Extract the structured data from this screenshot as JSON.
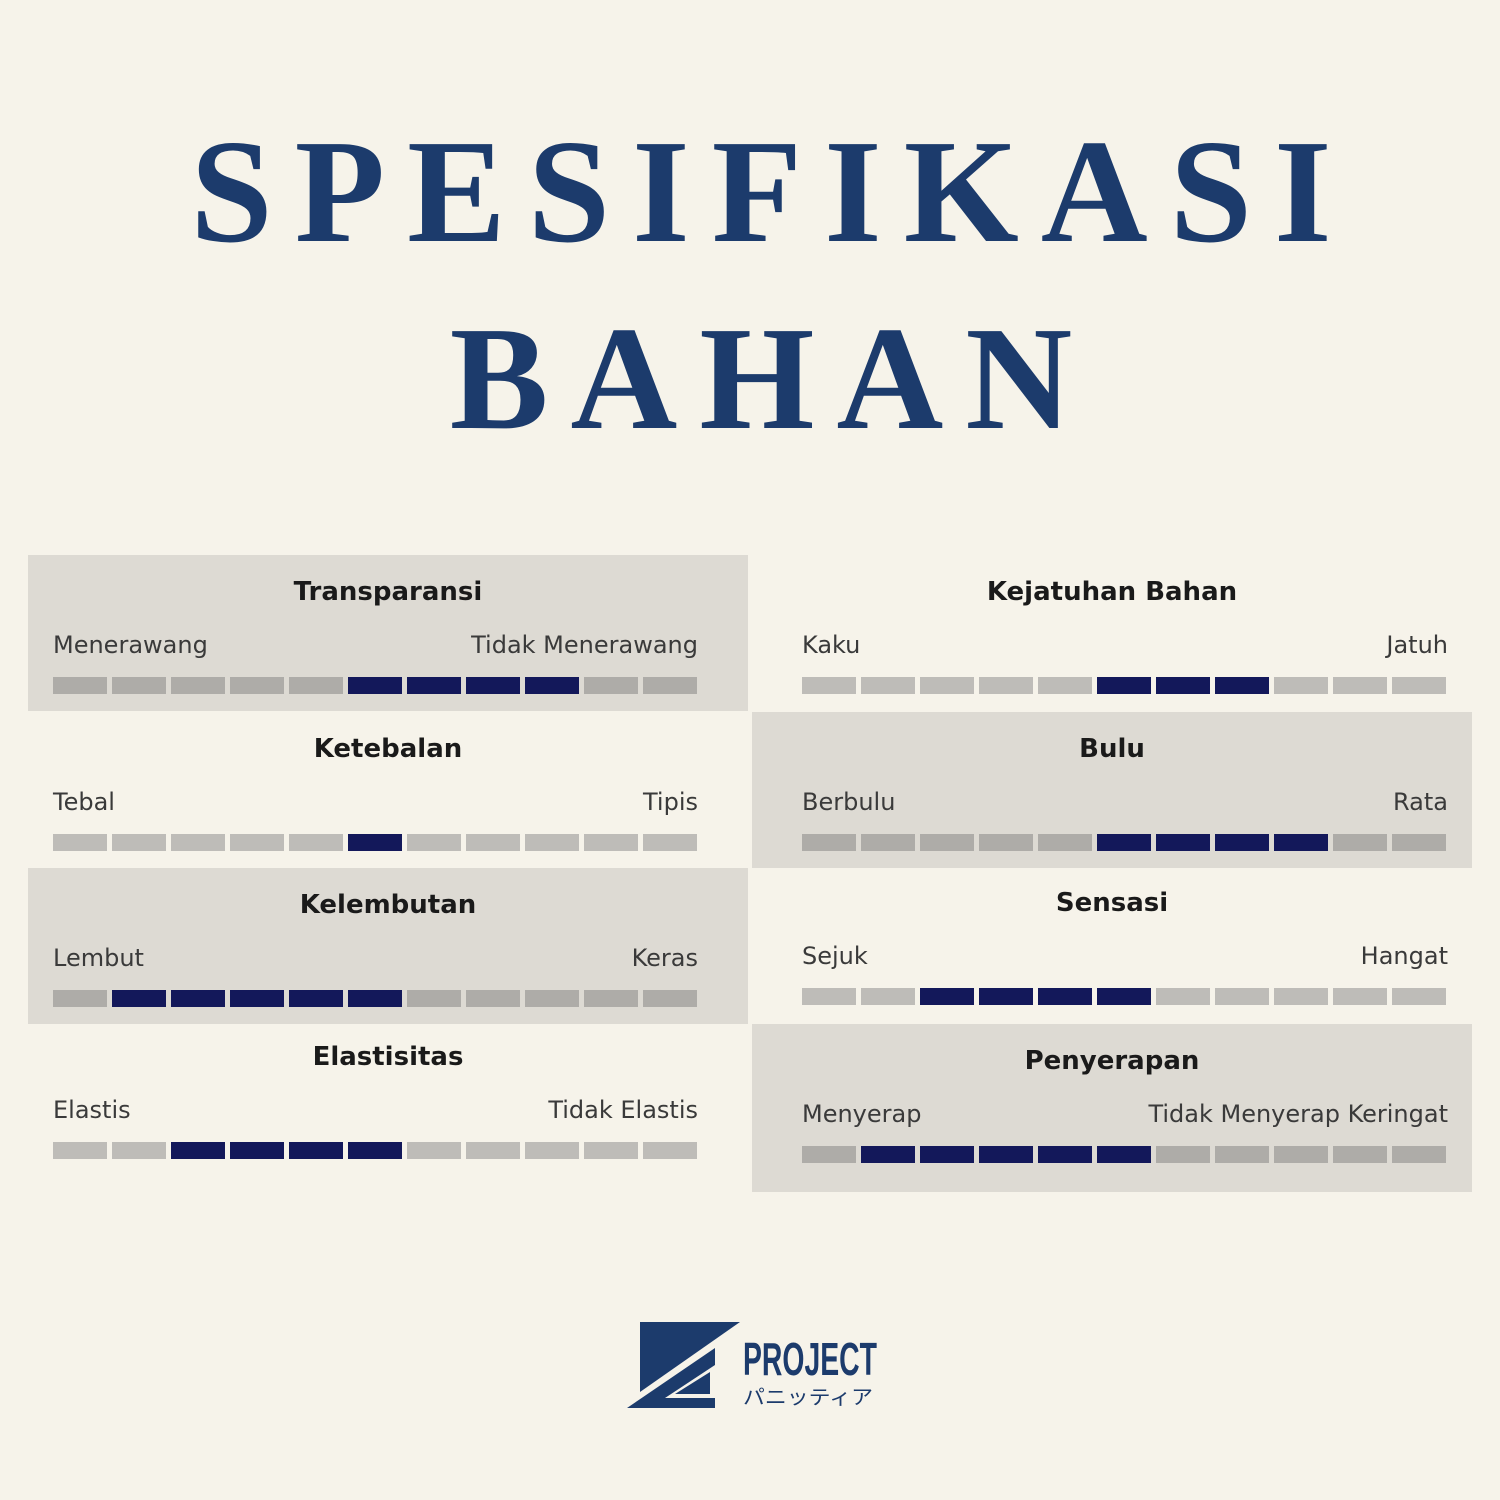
{
  "title": {
    "line1": "SPESIFIKASI",
    "line2": "BAHAN",
    "color": "#1c3b6c"
  },
  "segment_count": 11,
  "colors": {
    "filled": "#13185a",
    "empty": "#bebcb8",
    "panel": "#dddad3"
  },
  "specs": [
    {
      "name": "Transparansi",
      "left": "Menerawang",
      "right": "Tidak Menerawang",
      "filled": [
        5,
        6,
        7,
        8
      ]
    },
    {
      "name": "Ketebalan",
      "left": "Tebal",
      "right": "Tipis",
      "filled": [
        5
      ]
    },
    {
      "name": "Kelembutan",
      "left": "Lembut",
      "right": "Keras",
      "filled": [
        1,
        2,
        3,
        4,
        5
      ]
    },
    {
      "name": "Elastisitas",
      "left": "Elastis",
      "right": "Tidak Elastis",
      "filled": [
        2,
        3,
        4,
        5
      ]
    },
    {
      "name": "Kejatuhan Bahan",
      "left": "Kaku",
      "right": "Jatuh",
      "filled": [
        5,
        6,
        7
      ]
    },
    {
      "name": "Bulu",
      "left": "Berbulu",
      "right": "Rata",
      "filled": [
        5,
        6,
        7,
        8
      ]
    },
    {
      "name": "Sensasi",
      "left": "Sejuk",
      "right": "Hangat",
      "filled": [
        2,
        3,
        4,
        5
      ]
    },
    {
      "name": "Penyerapan",
      "left": "Menyerap",
      "right": "Tidak Menyerap Keringat",
      "filled": [
        1,
        2,
        3,
        4,
        5
      ]
    }
  ],
  "logo": {
    "text": "PROJECT",
    "subtext": "パニッティア"
  }
}
